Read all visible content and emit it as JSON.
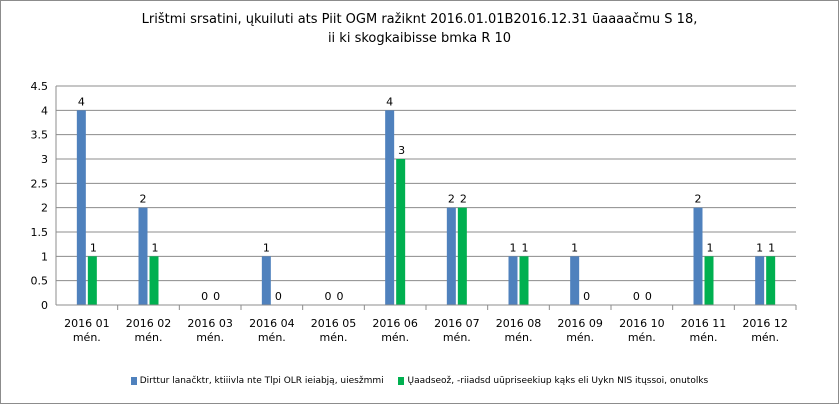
{
  "chart_data": {
    "type": "bar",
    "title_line1": "Lrištmi srsatini, ųkuiluti ats Piit OGM ražiknt 2016.01.01B2016.12.31  ūaaaačmu S 18,",
    "title_line2": "ii ki skogkaibisse bmka R 10",
    "categories": [
      [
        "2016 01",
        "mén."
      ],
      [
        "2016 02",
        "mén."
      ],
      [
        "2016 03",
        "mén."
      ],
      [
        "2016 04",
        "mén."
      ],
      [
        "2016 05",
        "mén."
      ],
      [
        "2016 06",
        "mén."
      ],
      [
        "2016 07",
        "mén."
      ],
      [
        "2016 08",
        "mén."
      ],
      [
        "2016 09",
        "mén."
      ],
      [
        "2016 10",
        "mén."
      ],
      [
        "2016 11",
        "mén."
      ],
      [
        "2016 12",
        "mén."
      ]
    ],
    "series": [
      {
        "name": "Dirttur lanačktr, ktiiivla nte Tlpi OLR ieiabją, uiesžmmi",
        "color": "#4f81bd",
        "values": [
          4,
          2,
          0,
          1,
          0,
          4,
          2,
          1,
          1,
          0,
          2,
          1
        ]
      },
      {
        "name": "Ųaadseož, -riiadsd uūpriseekiup kąks eli Uykn NIS itųssoi, onutolks",
        "color": "#00b050",
        "values": [
          1,
          1,
          0,
          0,
          0,
          3,
          2,
          1,
          0,
          0,
          1,
          1
        ]
      }
    ],
    "ylim": [
      0,
      4.5
    ],
    "yticks": [
      "0",
      "0.5",
      "1",
      "1.5",
      "2",
      "2.5",
      "3",
      "3.5",
      "4",
      "4.5"
    ],
    "grid": true,
    "legend_position": "bottom"
  }
}
